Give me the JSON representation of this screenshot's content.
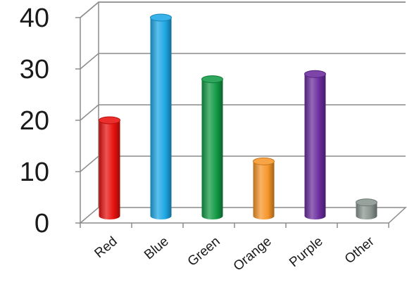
{
  "chart_data": {
    "type": "bar",
    "style": "3d-cylinder",
    "categories": [
      "Red",
      "Blue",
      "Green",
      "Orange",
      "Purple",
      "Other"
    ],
    "values": [
      20,
      40,
      28,
      12,
      29,
      4
    ],
    "colors": [
      "#e8120f",
      "#1ea8e6",
      "#129a45",
      "#f7962a",
      "#6b2c9e",
      "#8a9590"
    ],
    "ylim": [
      0,
      40
    ],
    "yticks": [
      0,
      10,
      20,
      30,
      40
    ],
    "grid": true,
    "legend": "none",
    "title": "",
    "xlabel": "",
    "ylabel": ""
  }
}
